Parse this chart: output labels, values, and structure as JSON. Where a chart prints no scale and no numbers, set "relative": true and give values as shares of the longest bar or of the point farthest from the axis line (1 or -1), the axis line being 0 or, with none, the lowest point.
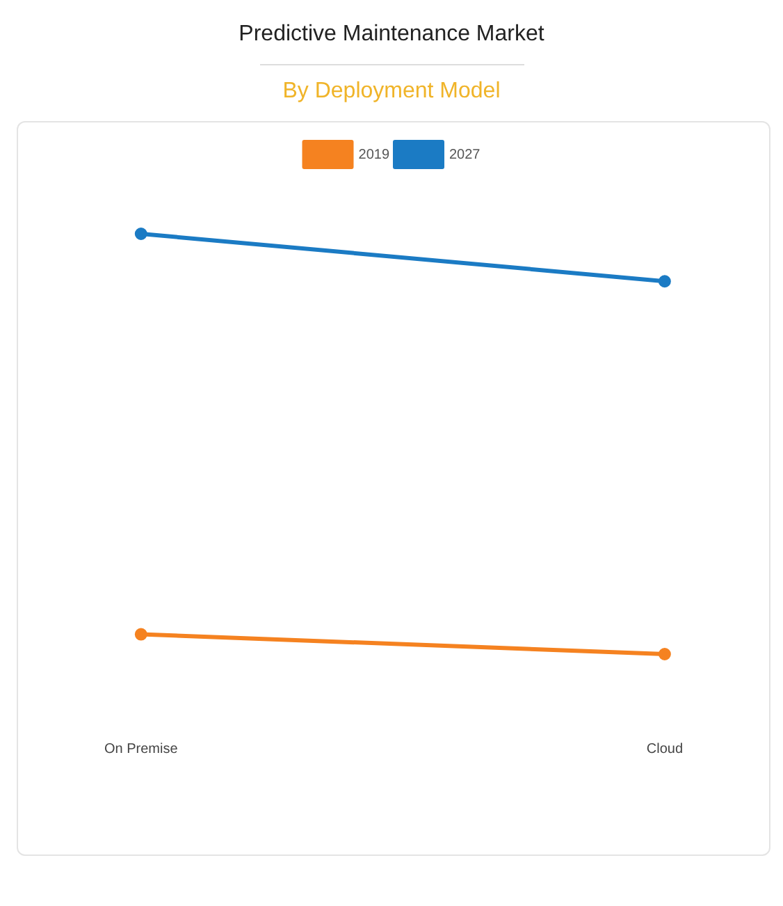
{
  "chart_data": {
    "type": "line",
    "title": "Predictive Maintenance Market",
    "subtitle": "By Deployment Model",
    "relative": true,
    "categories": [
      "On Premise",
      "Cloud"
    ],
    "series": [
      {
        "name": "2019",
        "color": "#f58220",
        "values": [
          0.047,
          0
        ]
      },
      {
        "name": "2027",
        "color": "#1b7bc4",
        "values": [
          1,
          0.887
        ]
      }
    ],
    "legend": "top",
    "marker": "circle",
    "grid": false
  }
}
